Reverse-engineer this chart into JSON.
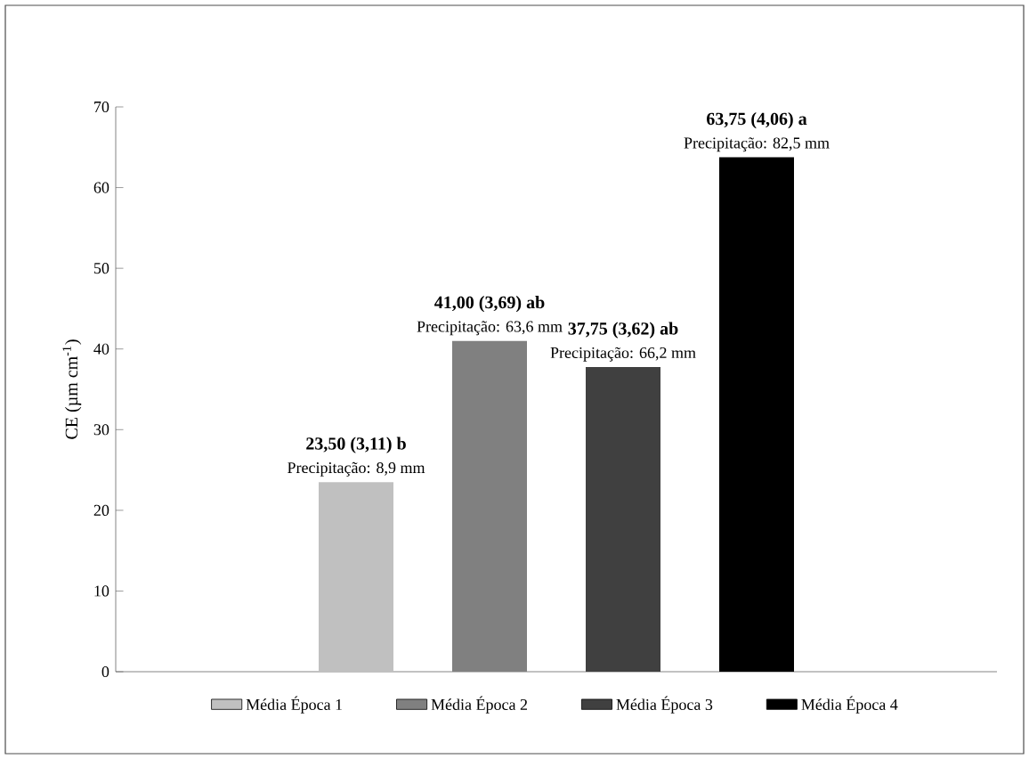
{
  "chart_data": {
    "type": "bar",
    "ylabel": "CE (µm cm$^{-1}$)",
    "categories": [
      null
    ],
    "series": [
      {
        "name": "Média Época 1",
        "color": "#c0c0c0",
        "values": [
          23.5
        ],
        "value_labels": [
          "23,50 (3,11)  b"
        ]
      },
      {
        "name": "Média Época 2",
        "color": "#808080",
        "values": [
          41.0
        ],
        "value_labels": [
          "41,00 (3,69)  ab"
        ]
      },
      {
        "name": "Média Época 3",
        "color": "#404040",
        "values": [
          37.75
        ],
        "value_labels": [
          "37,75 (3,62)  ab"
        ]
      },
      {
        "name": "Média Época 4",
        "color": "#000000",
        "values": [
          63.75
        ],
        "value_labels": [
          "63,75 (4,06)  a"
        ]
      }
    ],
    "annotations": [
      {
        "text": "Precipitação: 8,9 mm",
        "y": 23.5
      },
      {
        "text": "Precipitação: 63,6 mm",
        "y": 41.0
      },
      {
        "text": "Precipitação: 66,2 mm",
        "y": 37.75
      },
      {
        "text": "Precipitação: 82,5 mm",
        "y": 63.75
      }
    ],
    "ylim": [
      0,
      70
    ],
    "yticks": [
      0,
      10,
      20,
      30,
      40,
      50,
      60,
      70
    ],
    "legend": "bottom",
    "grid": false
  }
}
